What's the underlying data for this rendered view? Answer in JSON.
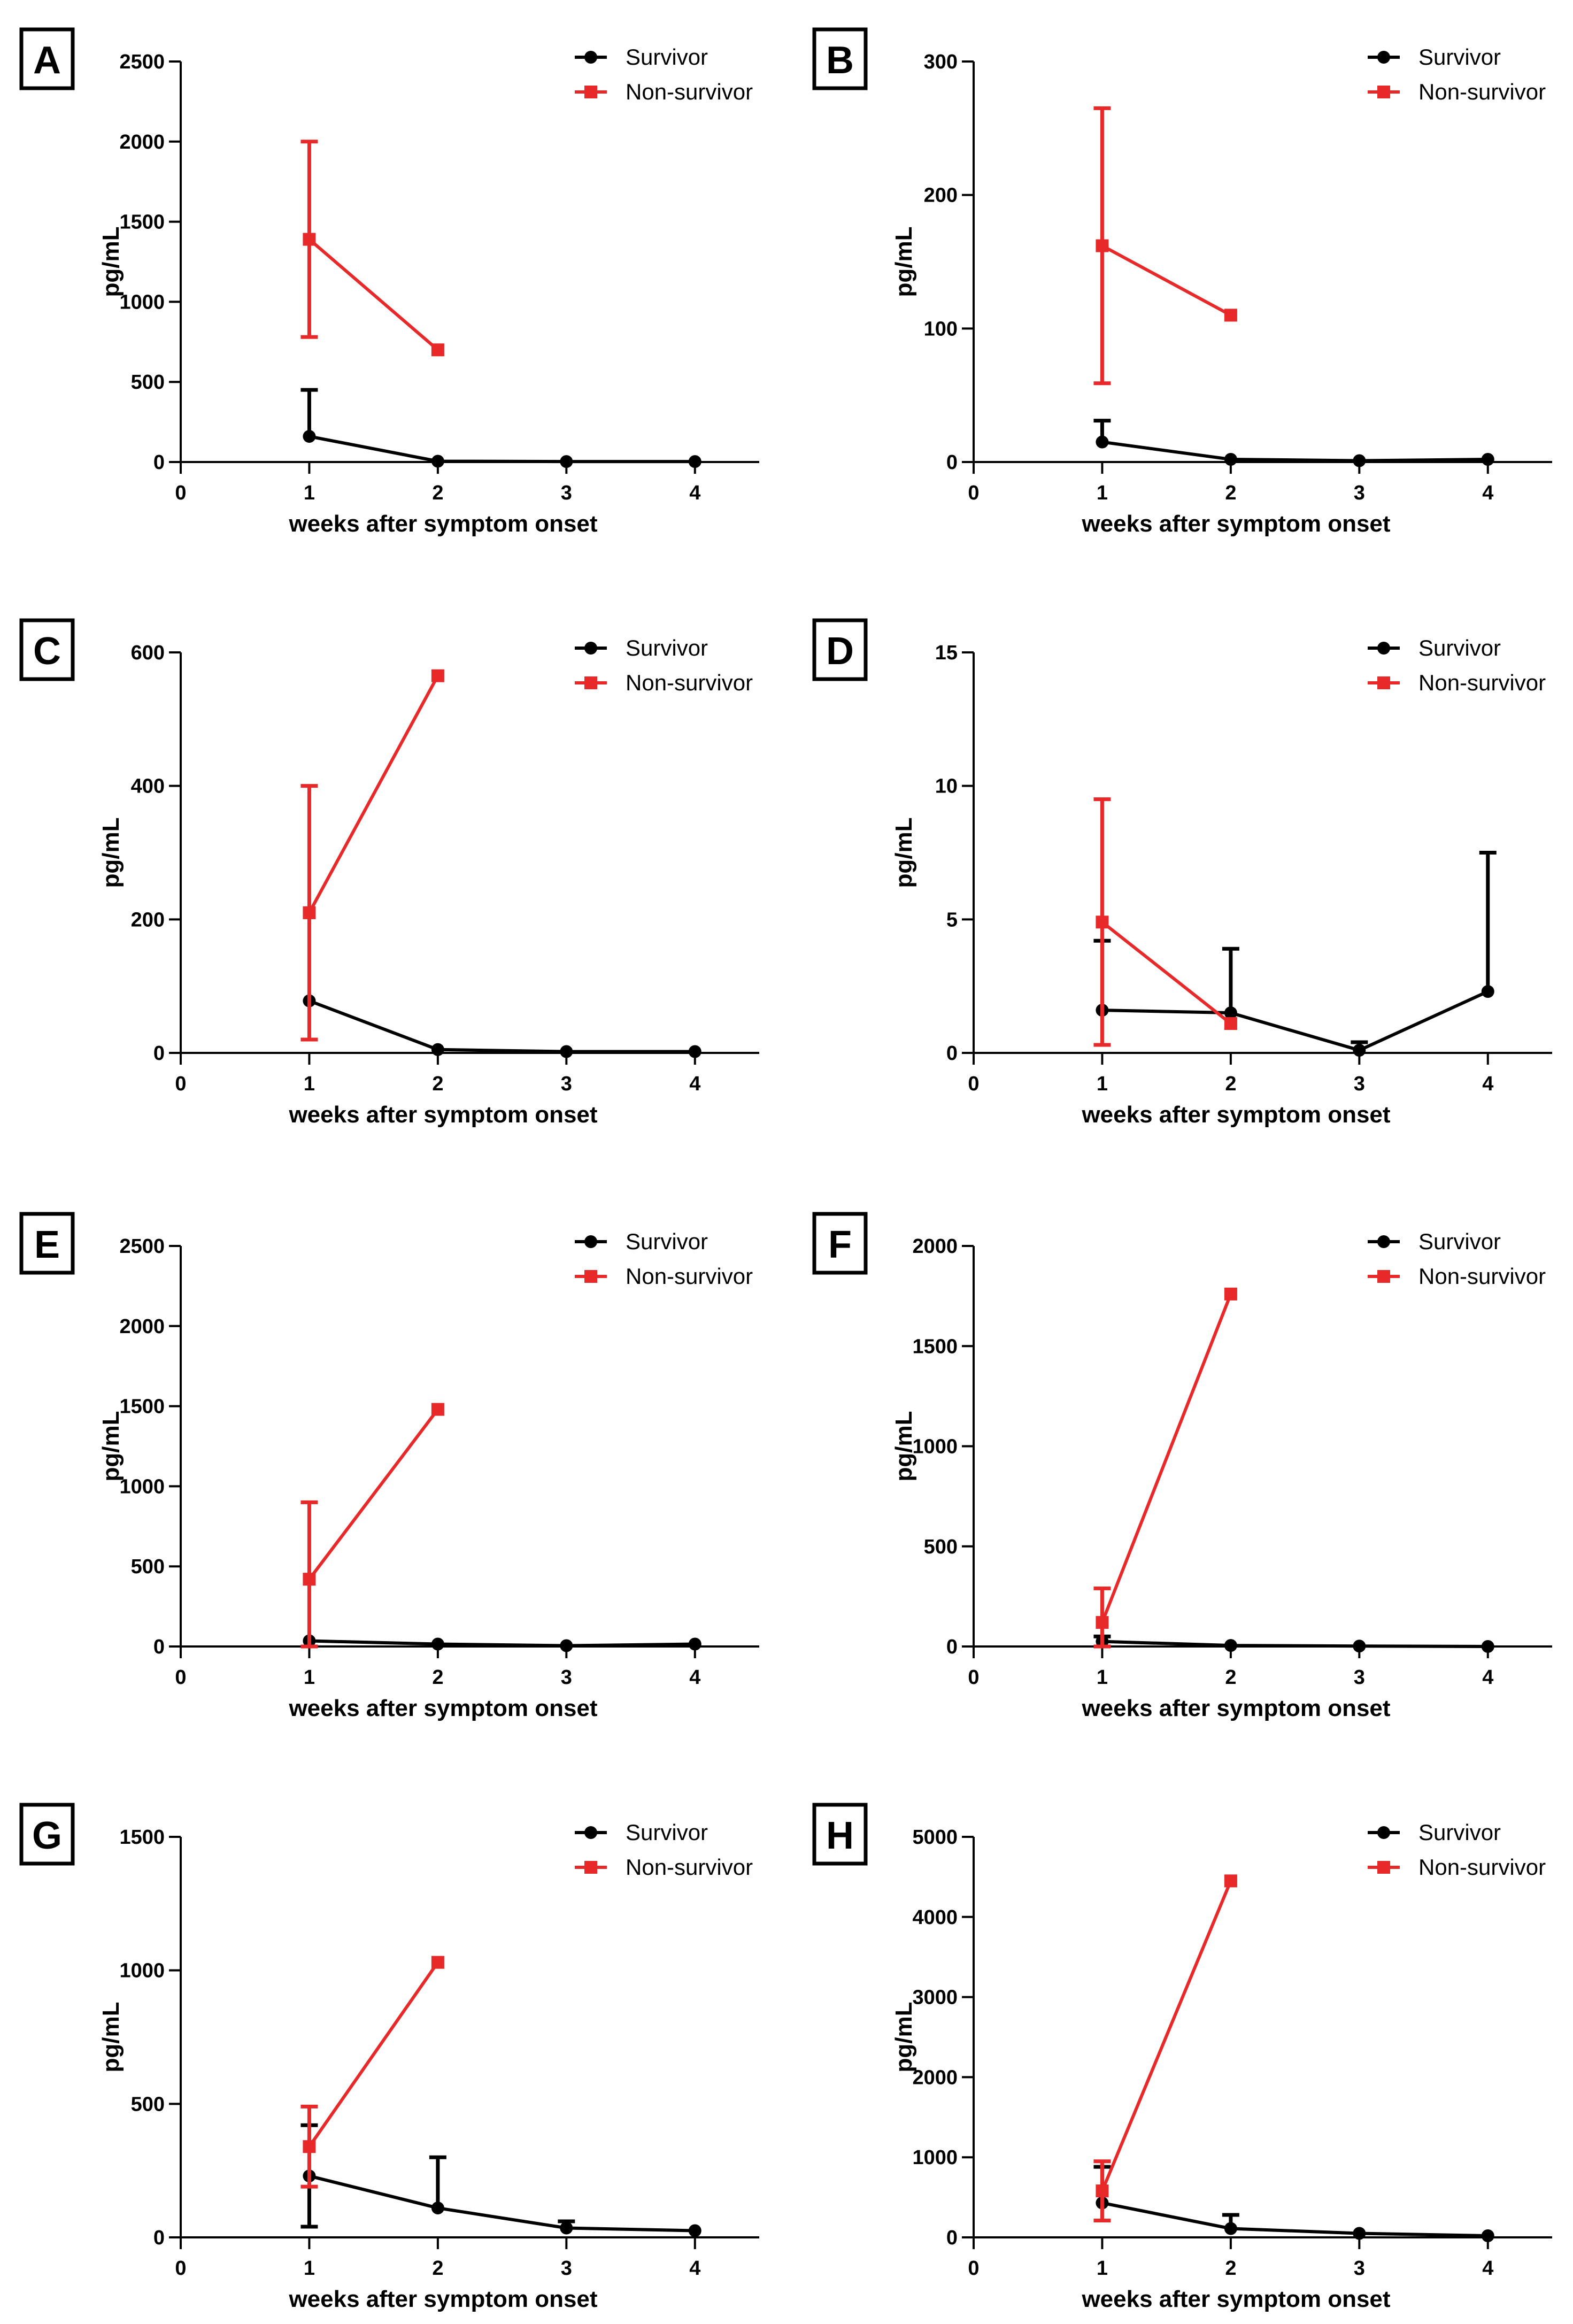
{
  "colors": {
    "survivor": "#000000",
    "non_survivor": "#e8292a",
    "axis": "#000000"
  },
  "chart_data": [
    {
      "panel": "A",
      "type": "line",
      "xlabel": "weeks after symptom onset",
      "ylabel": "pg/mL",
      "x_ticks": [
        "0",
        "1",
        "2",
        "3",
        "4"
      ],
      "xlim": [
        0,
        4.5
      ],
      "ylim": [
        0,
        2500
      ],
      "y_ticks": [
        "0",
        "500",
        "1000",
        "1500",
        "2000",
        "2500"
      ],
      "y_tick_values": [
        0,
        500,
        1000,
        1500,
        2000,
        2500
      ],
      "legend": [
        "Survivor",
        "Non-survivor"
      ],
      "series": [
        {
          "name": "Survivor",
          "marker": "circle",
          "x": [
            1,
            2,
            3,
            4
          ],
          "y": [
            160,
            5,
            3,
            3
          ],
          "err_upper": [
            290,
            0,
            0,
            0
          ],
          "err_lower": [
            0,
            0,
            0,
            0
          ]
        },
        {
          "name": "Non-survivor",
          "marker": "square",
          "x": [
            1,
            2
          ],
          "y": [
            1390,
            700
          ],
          "err_upper": [
            610,
            0
          ],
          "err_lower": [
            610,
            0
          ]
        }
      ]
    },
    {
      "panel": "B",
      "type": "line",
      "xlabel": "weeks after symptom onset",
      "ylabel": "pg/mL",
      "x_ticks": [
        "0",
        "1",
        "2",
        "3",
        "4"
      ],
      "xlim": [
        0,
        4.5
      ],
      "ylim": [
        0,
        300
      ],
      "y_ticks": [
        "0",
        "100",
        "200",
        "300"
      ],
      "y_tick_values": [
        0,
        100,
        200,
        300
      ],
      "legend": [
        "Survivor",
        "Non-survivor"
      ],
      "series": [
        {
          "name": "Survivor",
          "marker": "circle",
          "x": [
            1,
            2,
            3,
            4
          ],
          "y": [
            15,
            2,
            1,
            2
          ],
          "err_upper": [
            16,
            0,
            0,
            0
          ],
          "err_lower": [
            0,
            0,
            0,
            0
          ]
        },
        {
          "name": "Non-survivor",
          "marker": "square",
          "x": [
            1,
            2
          ],
          "y": [
            162,
            110
          ],
          "err_upper": [
            103,
            0
          ],
          "err_lower": [
            103,
            0
          ]
        }
      ]
    },
    {
      "panel": "C",
      "type": "line",
      "xlabel": "weeks after symptom onset",
      "ylabel": "pg/mL",
      "x_ticks": [
        "0",
        "1",
        "2",
        "3",
        "4"
      ],
      "xlim": [
        0,
        4.5
      ],
      "ylim": [
        0,
        600
      ],
      "y_ticks": [
        "0",
        "200",
        "400",
        "600"
      ],
      "y_tick_values": [
        0,
        200,
        400,
        600
      ],
      "legend": [
        "Survivor",
        "Non-survivor"
      ],
      "series": [
        {
          "name": "Survivor",
          "marker": "circle",
          "x": [
            1,
            2,
            3,
            4
          ],
          "y": [
            78,
            5,
            2,
            2
          ],
          "err_upper": [
            0,
            0,
            0,
            0
          ],
          "err_lower": [
            0,
            0,
            0,
            0
          ]
        },
        {
          "name": "Non-survivor",
          "marker": "square",
          "x": [
            1,
            2
          ],
          "y": [
            210,
            565
          ],
          "err_upper": [
            190,
            0
          ],
          "err_lower": [
            190,
            0
          ]
        }
      ]
    },
    {
      "panel": "D",
      "type": "line",
      "xlabel": "weeks after symptom onset",
      "ylabel": "pg/mL",
      "x_ticks": [
        "0",
        "1",
        "2",
        "3",
        "4"
      ],
      "xlim": [
        0,
        4.5
      ],
      "ylim": [
        0,
        15
      ],
      "y_ticks": [
        "0",
        "5",
        "10",
        "15"
      ],
      "y_tick_values": [
        0,
        5,
        10,
        15
      ],
      "legend": [
        "Survivor",
        "Non-survivor"
      ],
      "series": [
        {
          "name": "Survivor",
          "marker": "circle",
          "x": [
            1,
            2,
            3,
            4
          ],
          "y": [
            1.6,
            1.5,
            0.1,
            2.3
          ],
          "err_upper": [
            2.6,
            2.4,
            0.3,
            5.2
          ],
          "err_lower": [
            0,
            0,
            0,
            0
          ]
        },
        {
          "name": "Non-survivor",
          "marker": "square",
          "x": [
            1,
            2
          ],
          "y": [
            4.9,
            1.1
          ],
          "err_upper": [
            4.6,
            0
          ],
          "err_lower": [
            4.6,
            0
          ]
        }
      ]
    },
    {
      "panel": "E",
      "type": "line",
      "xlabel": "weeks after symptom onset",
      "ylabel": "pg/mL",
      "x_ticks": [
        "0",
        "1",
        "2",
        "3",
        "4"
      ],
      "xlim": [
        0,
        4.5
      ],
      "ylim": [
        0,
        2500
      ],
      "y_ticks": [
        "0",
        "500",
        "1000",
        "1500",
        "2000",
        "2500"
      ],
      "y_tick_values": [
        0,
        500,
        1000,
        1500,
        2000,
        2500
      ],
      "legend": [
        "Survivor",
        "Non-survivor"
      ],
      "series": [
        {
          "name": "Survivor",
          "marker": "circle",
          "x": [
            1,
            2,
            3,
            4
          ],
          "y": [
            35,
            15,
            5,
            15
          ],
          "err_upper": [
            0,
            0,
            0,
            0
          ],
          "err_lower": [
            0,
            0,
            0,
            0
          ]
        },
        {
          "name": "Non-survivor",
          "marker": "square",
          "x": [
            1,
            2
          ],
          "y": [
            420,
            1480
          ],
          "err_upper": [
            480,
            0
          ],
          "err_lower": [
            480,
            0
          ]
        }
      ]
    },
    {
      "panel": "F",
      "type": "line",
      "xlabel": "weeks after symptom onset",
      "ylabel": "pg/mL",
      "x_ticks": [
        "0",
        "1",
        "2",
        "3",
        "4"
      ],
      "xlim": [
        0,
        4.5
      ],
      "ylim": [
        0,
        2000
      ],
      "y_ticks": [
        "0",
        "500",
        "1000",
        "1500",
        "2000"
      ],
      "y_tick_values": [
        0,
        500,
        1000,
        1500,
        2000
      ],
      "legend": [
        "Survivor",
        "Non-survivor"
      ],
      "series": [
        {
          "name": "Survivor",
          "marker": "circle",
          "x": [
            1,
            2,
            3,
            4
          ],
          "y": [
            25,
            5,
            2,
            0
          ],
          "err_upper": [
            25,
            0,
            0,
            0
          ],
          "err_lower": [
            0,
            0,
            0,
            0
          ]
        },
        {
          "name": "Non-survivor",
          "marker": "square",
          "x": [
            1,
            2
          ],
          "y": [
            120,
            1760
          ],
          "err_upper": [
            170,
            0
          ],
          "err_lower": [
            120,
            0
          ]
        }
      ]
    },
    {
      "panel": "G",
      "type": "line",
      "xlabel": "weeks after symptom onset",
      "ylabel": "pg/mL",
      "x_ticks": [
        "0",
        "1",
        "2",
        "3",
        "4"
      ],
      "xlim": [
        0,
        4.5
      ],
      "ylim": [
        0,
        1500
      ],
      "y_ticks": [
        "0",
        "500",
        "1000",
        "1500"
      ],
      "y_tick_values": [
        0,
        500,
        1000,
        1500
      ],
      "legend": [
        "Survivor",
        "Non-survivor"
      ],
      "series": [
        {
          "name": "Survivor",
          "marker": "circle",
          "x": [
            1,
            2,
            3,
            4
          ],
          "y": [
            230,
            110,
            35,
            25
          ],
          "err_upper": [
            190,
            190,
            25,
            0
          ],
          "err_lower": [
            190,
            0,
            0,
            0
          ]
        },
        {
          "name": "Non-survivor",
          "marker": "square",
          "x": [
            1,
            2
          ],
          "y": [
            340,
            1030
          ],
          "err_upper": [
            150,
            0
          ],
          "err_lower": [
            150,
            0
          ]
        }
      ]
    },
    {
      "panel": "H",
      "type": "line",
      "xlabel": "weeks after symptom onset",
      "ylabel": "pg/mL",
      "x_ticks": [
        "0",
        "1",
        "2",
        "3",
        "4"
      ],
      "xlim": [
        0,
        4.5
      ],
      "ylim": [
        0,
        5000
      ],
      "y_ticks": [
        "0",
        "1000",
        "2000",
        "3000",
        "4000",
        "5000"
      ],
      "y_tick_values": [
        0,
        1000,
        2000,
        3000,
        4000,
        5000
      ],
      "legend": [
        "Survivor",
        "Non-survivor"
      ],
      "series": [
        {
          "name": "Survivor",
          "marker": "circle",
          "x": [
            1,
            2,
            3,
            4
          ],
          "y": [
            430,
            110,
            50,
            20
          ],
          "err_upper": [
            450,
            170,
            0,
            0
          ],
          "err_lower": [
            0,
            0,
            0,
            0
          ]
        },
        {
          "name": "Non-survivor",
          "marker": "square",
          "x": [
            1,
            2
          ],
          "y": [
            580,
            4450
          ],
          "err_upper": [
            370,
            0
          ],
          "err_lower": [
            370,
            0
          ]
        }
      ]
    }
  ]
}
